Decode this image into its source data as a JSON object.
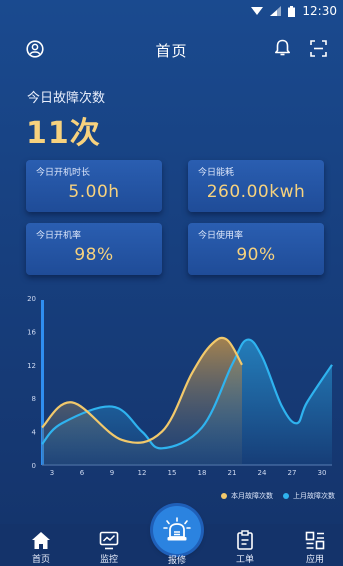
{
  "status_bar": {
    "time": "12:30"
  },
  "header": {
    "title": "首页"
  },
  "summary": {
    "fault_label": "今日故障次数",
    "fault_value": "11次"
  },
  "cards": [
    {
      "label": "今日开机时长",
      "value": "5.00h"
    },
    {
      "label": "今日能耗",
      "value": "260.00kwh"
    },
    {
      "label": "今日开机率",
      "value": "98%"
    },
    {
      "label": "今日使用率",
      "value": "90%"
    }
  ],
  "chart_data": {
    "type": "area",
    "x": [
      3,
      6,
      9,
      12,
      15,
      18,
      21,
      24,
      27,
      30
    ],
    "ylim": [
      0,
      20
    ],
    "yticks": [
      0,
      4,
      8,
      12,
      16,
      20
    ],
    "xlim": [
      2,
      31
    ],
    "series": [
      {
        "name": "本月故障次数",
        "color": "#f2c96b",
        "x": [
          2,
          5,
          10,
          14,
          17,
          19,
          20.5,
          22
        ],
        "values": [
          4.5,
          7.5,
          3,
          4,
          11,
          14.5,
          15,
          12
        ]
      },
      {
        "name": "上月故障次数",
        "color": "#2fb3ef",
        "x": [
          2,
          4,
          9,
          12,
          14,
          18,
          21,
          22.5,
          24,
          26,
          27.5,
          28.5,
          31
        ],
        "values": [
          2.5,
          5,
          7,
          4,
          2,
          4.5,
          12,
          15,
          13,
          7,
          5,
          7.5,
          12
        ]
      }
    ],
    "legend_position": "bottom-right",
    "grid": false
  },
  "tabbar": {
    "tabs": [
      {
        "label": "首页",
        "icon": "home-icon"
      },
      {
        "label": "监控",
        "icon": "monitor-icon"
      },
      {
        "label": "报修",
        "icon": "alarm-light-icon"
      },
      {
        "label": "工单",
        "icon": "clipboard-icon"
      },
      {
        "label": "应用",
        "icon": "apps-icon"
      }
    ]
  }
}
